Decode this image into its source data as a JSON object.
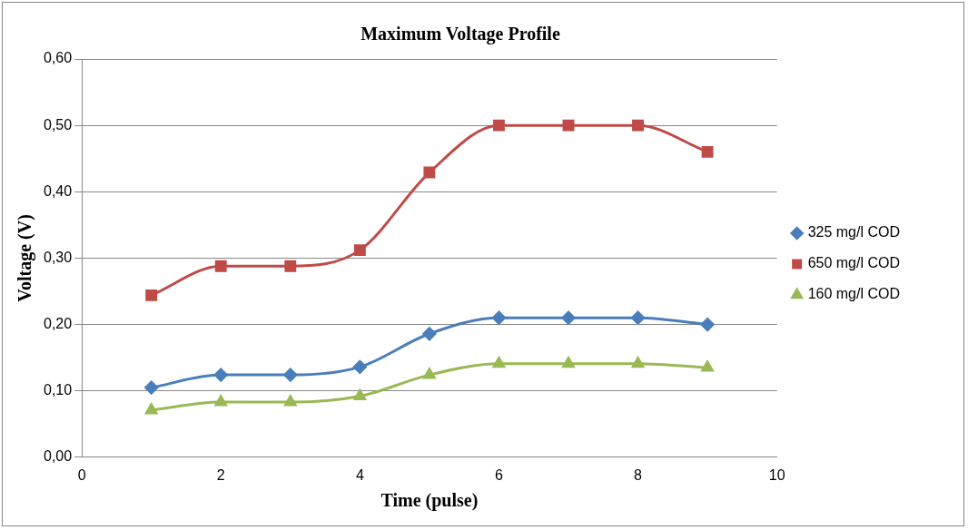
{
  "chart_data": {
    "type": "line",
    "title": "Maximum Voltage Profile",
    "xlabel": "Time (pulse)",
    "ylabel": "Voltage (V)",
    "x": [
      1,
      2,
      3,
      4,
      5,
      6,
      7,
      8,
      9
    ],
    "series": [
      {
        "name": "325 mg/l COD",
        "color": "#4a7ebb",
        "marker": "diamond",
        "values": [
          0.105,
          0.124,
          0.124,
          0.136,
          0.186,
          0.21,
          0.21,
          0.21,
          0.2
        ]
      },
      {
        "name": "650 mg/l COD",
        "color": "#be4b48",
        "marker": "square",
        "values": [
          0.244,
          0.288,
          0.288,
          0.312,
          0.429,
          0.5,
          0.5,
          0.5,
          0.46
        ]
      },
      {
        "name": "160 mg/l COD",
        "color": "#98b954",
        "marker": "triangle",
        "values": [
          0.071,
          0.083,
          0.083,
          0.092,
          0.124,
          0.141,
          0.141,
          0.141,
          0.135
        ]
      }
    ],
    "xlim": [
      0,
      10
    ],
    "xticks": [
      0,
      2,
      4,
      6,
      8,
      10
    ],
    "ylim": [
      0,
      0.6
    ],
    "yticks": [
      {
        "value": 0,
        "label": "0,00"
      },
      {
        "value": 0.1,
        "label": "0,10"
      },
      {
        "value": 0.2,
        "label": "0,20"
      },
      {
        "value": 0.3,
        "label": "0,30"
      },
      {
        "value": 0.4,
        "label": "0,40"
      },
      {
        "value": 0.5,
        "label": "0,50"
      },
      {
        "value": 0.6,
        "label": "0,60"
      }
    ],
    "grid": "y",
    "legend": "right",
    "line_style": "solid"
  }
}
